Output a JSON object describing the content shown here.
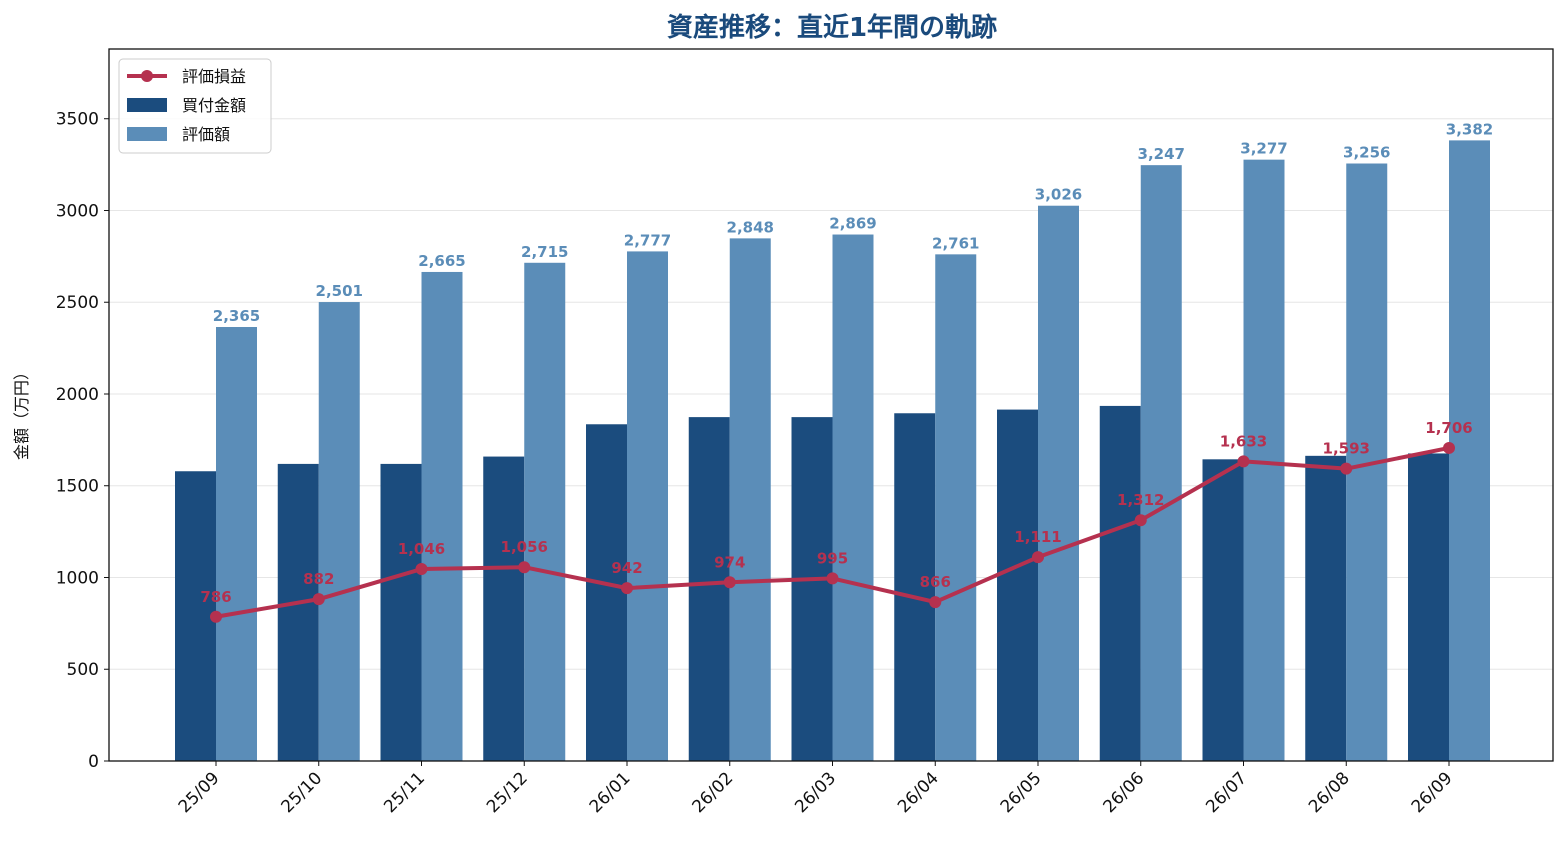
{
  "chart_data": {
    "type": "bar",
    "title": "資産推移：直近1年間の軌跡",
    "ylabel": "金額（万円）",
    "xlabel": "",
    "ylim": [
      0,
      3880
    ],
    "yticks": [
      0,
      500,
      1000,
      1500,
      2000,
      2500,
      3000,
      3500
    ],
    "grid": "horizontal",
    "legend_position": "top-left",
    "categories": [
      "25/09",
      "25/10",
      "25/11",
      "25/12",
      "26/01",
      "26/02",
      "26/03",
      "26/04",
      "26/05",
      "26/06",
      "26/07",
      "26/08",
      "26/09"
    ],
    "series": [
      {
        "name": "買付金額",
        "type": "bar",
        "color": "#1b4c7e",
        "values": [
          1579,
          1619,
          1619,
          1659,
          1835,
          1874,
          1874,
          1895,
          1915,
          1935,
          1644,
          1663,
          1676
        ],
        "show_labels": false
      },
      {
        "name": "評価額",
        "type": "bar",
        "color": "#5b8db8",
        "values": [
          2365,
          2501,
          2665,
          2715,
          2777,
          2848,
          2869,
          2761,
          3026,
          3247,
          3277,
          3256,
          3382
        ],
        "labels": [
          "2,365",
          "2,501",
          "2,665",
          "2,715",
          "2,777",
          "2,848",
          "2,869",
          "2,761",
          "3,026",
          "3,247",
          "3,277",
          "3,256",
          "3,382"
        ],
        "show_labels": true
      },
      {
        "name": "評価損益",
        "type": "line",
        "color": "#b5314f",
        "values": [
          786,
          882,
          1046,
          1056,
          942,
          974,
          995,
          866,
          1111,
          1312,
          1633,
          1593,
          1706
        ],
        "labels": [
          "786",
          "882",
          "1,046",
          "1,056",
          "942",
          "974",
          "995",
          "866",
          "1,111",
          "1,312",
          "1,633",
          "1,593",
          "1,706"
        ],
        "show_labels": true
      }
    ],
    "legend_order": [
      "評価損益",
      "買付金額",
      "評価額"
    ]
  }
}
